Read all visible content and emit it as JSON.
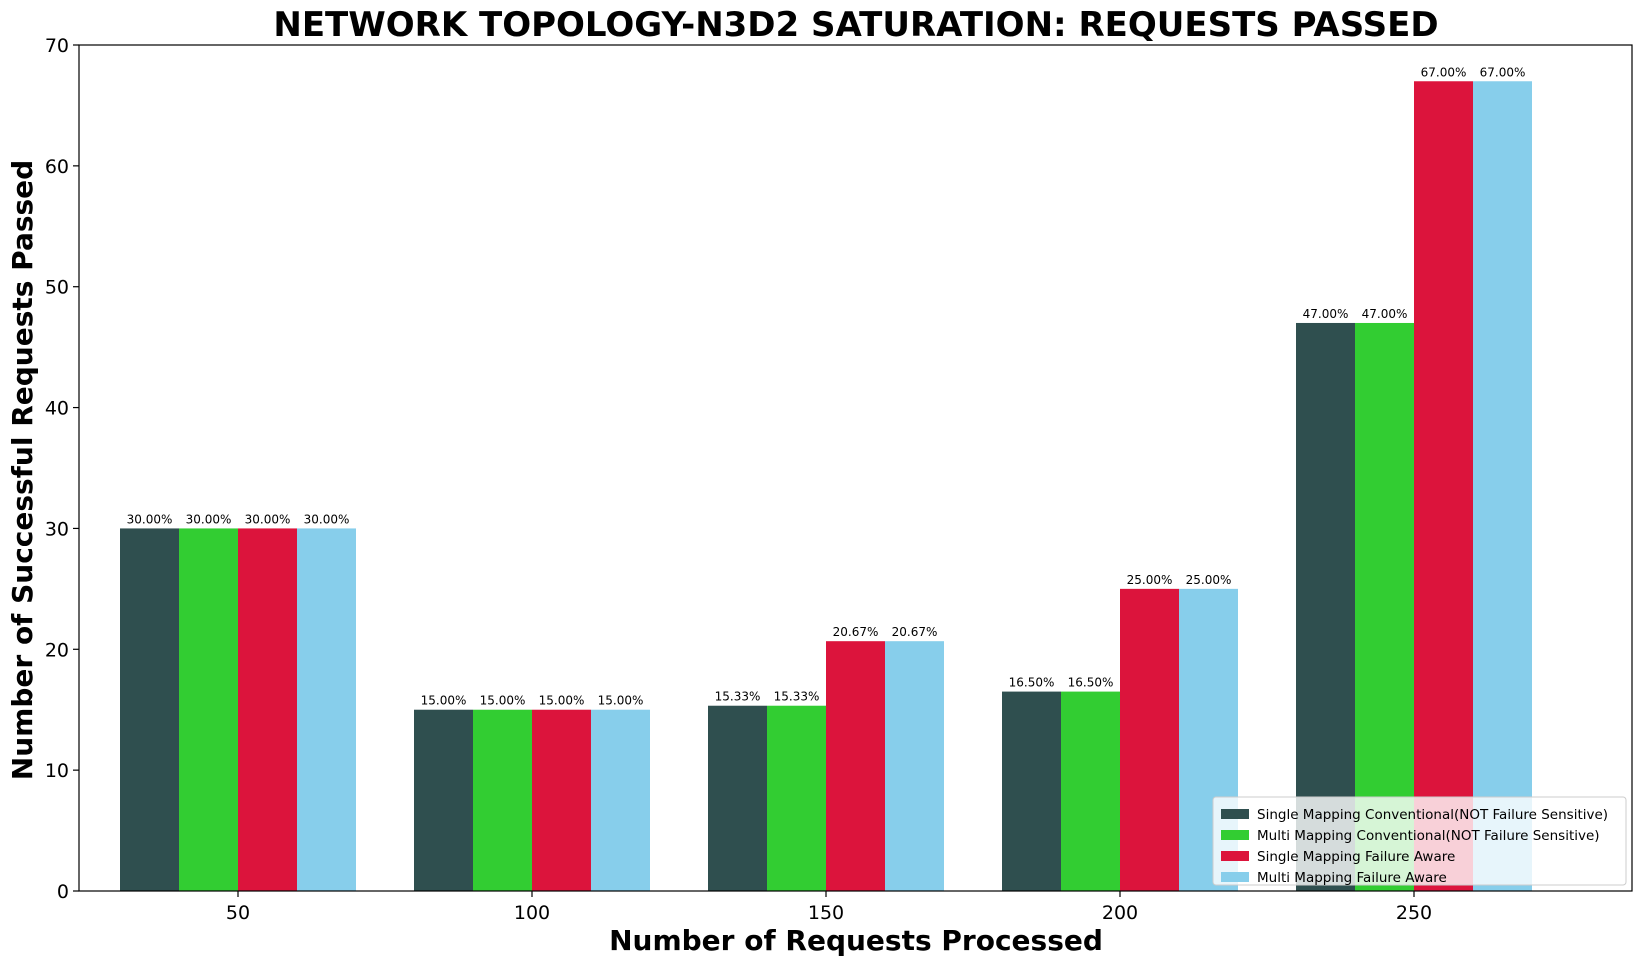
{
  "chart_data": {
    "type": "bar",
    "title": "NETWORK TOPOLOGY-N3D2 SATURATION: REQUESTS PASSED",
    "xlabel": "Number of Requests Processed",
    "ylabel": "Number of Successful Requests Passed",
    "categories": [
      "50",
      "100",
      "150",
      "200",
      "250"
    ],
    "ylim": [
      0,
      70
    ],
    "yticks": [
      0,
      10,
      20,
      30,
      40,
      50,
      60,
      70
    ],
    "legend_position": "lower-right",
    "grid": false,
    "series": [
      {
        "name": "Single Mapping Conventional(NOT Failure Sensitive)",
        "color": "#2f4f4f",
        "values": [
          30,
          15,
          15.33,
          16.5,
          47
        ],
        "labels": [
          "30.00%",
          "15.00%",
          "15.33%",
          "16.50%",
          "47.00%"
        ]
      },
      {
        "name": "Multi Mapping Conventional(NOT Failure Sensitive)",
        "color": "#32cd32",
        "values": [
          30,
          15,
          15.33,
          16.5,
          47
        ],
        "labels": [
          "30.00%",
          "15.00%",
          "15.33%",
          "16.50%",
          "47.00%"
        ]
      },
      {
        "name": "Single Mapping Failure Aware",
        "color": "#dc143c",
        "values": [
          30,
          15,
          20.67,
          25,
          67
        ],
        "labels": [
          "30.00%",
          "15.00%",
          "20.67%",
          "25.00%",
          "67.00%"
        ]
      },
      {
        "name": "Multi Mapping Failure Aware",
        "color": "#87ceeb",
        "values": [
          30,
          15,
          20.67,
          25,
          67
        ],
        "labels": [
          "30.00%",
          "15.00%",
          "20.67%",
          "25.00%",
          "67.00%"
        ]
      }
    ]
  }
}
